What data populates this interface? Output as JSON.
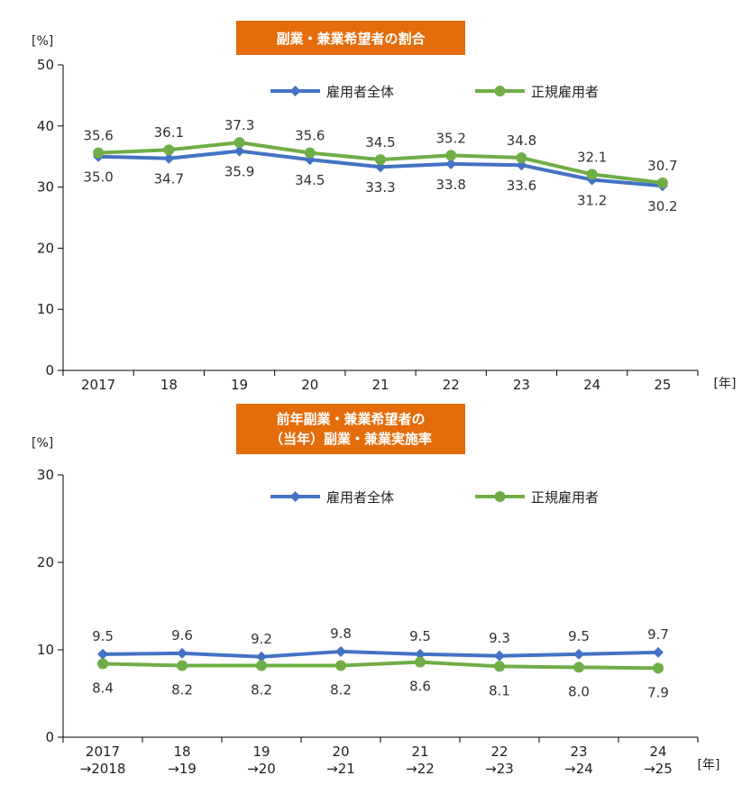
{
  "colors": {
    "blue": "#4472C4",
    "green": "#70AD47",
    "title_bg": "#E46C0A",
    "axis": "#000000"
  },
  "chart_data": [
    {
      "type": "line",
      "title": "副業・兼業希望者の割合",
      "ylabel": "[%]",
      "xunit": "[年]",
      "ylim": [
        0,
        50
      ],
      "yticks": [
        0,
        10,
        20,
        30,
        40,
        50
      ],
      "grid": false,
      "legend_position": "top",
      "categories": [
        "2017",
        "18",
        "19",
        "20",
        "21",
        "22",
        "23",
        "24",
        "25"
      ],
      "series": [
        {
          "name": "雇用者全体",
          "color": "#4472C4",
          "marker": "diamond",
          "values": [
            35.0,
            34.7,
            35.9,
            34.5,
            33.3,
            33.8,
            33.6,
            31.2,
            30.2
          ],
          "labels": [
            "35.0",
            "34.7",
            "35.9",
            "34.5",
            "33.3",
            "33.8",
            "33.6",
            "31.2",
            "30.2"
          ]
        },
        {
          "name": "正規雇用者",
          "color": "#70AD47",
          "marker": "circle",
          "values": [
            35.6,
            36.1,
            37.3,
            35.6,
            34.5,
            35.2,
            34.8,
            32.1,
            30.7
          ],
          "labels": [
            "35.6",
            "36.1",
            "37.3",
            "35.6",
            "34.5",
            "35.2",
            "34.8",
            "32.1",
            "30.7"
          ]
        }
      ]
    },
    {
      "type": "line",
      "title": "前年副業・兼業希望者の\n（当年）副業・兼業実施率",
      "ylabel": "[%]",
      "xunit": "[年]",
      "ylim": [
        0,
        30
      ],
      "yticks": [
        0,
        10,
        20,
        30
      ],
      "grid": false,
      "legend_position": "top",
      "categories": [
        "2017\n→2018",
        "18\n→19",
        "19\n→20",
        "20\n→21",
        "21\n→22",
        "22\n→23",
        "23\n→24",
        "24\n→25"
      ],
      "series": [
        {
          "name": "雇用者全体",
          "color": "#4472C4",
          "marker": "diamond",
          "values": [
            9.5,
            9.6,
            9.2,
            9.8,
            9.5,
            9.3,
            9.5,
            9.7
          ],
          "labels": [
            "9.5",
            "9.6",
            "9.2",
            "9.8",
            "9.5",
            "9.3",
            "9.5",
            "9.7"
          ]
        },
        {
          "name": "正規雇用者",
          "color": "#70AD47",
          "marker": "circle",
          "values": [
            8.4,
            8.2,
            8.2,
            8.2,
            8.6,
            8.1,
            8.0,
            7.9
          ],
          "labels": [
            "8.4",
            "8.2",
            "8.2",
            "8.2",
            "8.6",
            "8.1",
            "8.0",
            "7.9"
          ]
        }
      ]
    }
  ]
}
